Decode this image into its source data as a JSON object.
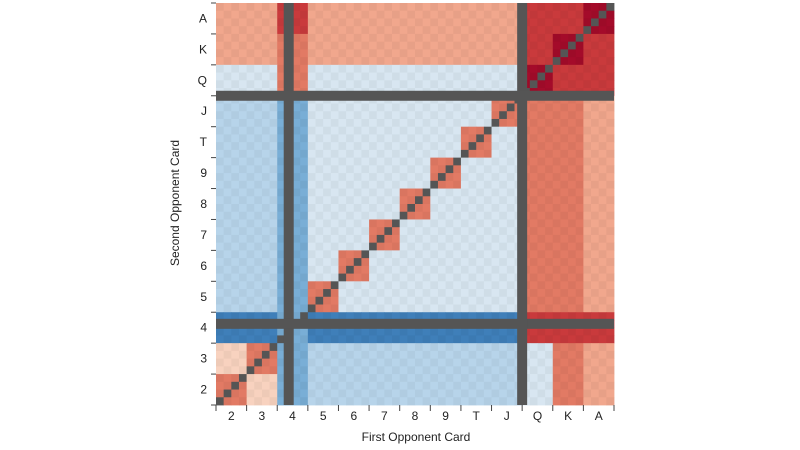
{
  "chart_data": {
    "type": "heatmap",
    "title": "",
    "xlabel": "First Opponent Card",
    "ylabel": "Second Opponent Card",
    "ranks": [
      "2",
      "3",
      "4",
      "5",
      "6",
      "7",
      "8",
      "9",
      "T",
      "J",
      "Q",
      "K",
      "A"
    ],
    "suits_per_rank": 4,
    "highlighted_rank": "4",
    "divider_after_ranks": [
      "J"
    ],
    "colors": {
      "deep_blue": "#3f7fb9",
      "mid_blue": "#79aed6",
      "light_blue": "#b7d4ea",
      "pale_blue": "#d8e6f1",
      "neutral": "#f2ebe7",
      "pale_red": "#f8d2bf",
      "light_red": "#f1a78d",
      "mid_red": "#e27a64",
      "strong_red": "#c93a3c",
      "dark_red": "#a40b2a",
      "separator": "#555555"
    },
    "legend": "none",
    "grid": false
  }
}
